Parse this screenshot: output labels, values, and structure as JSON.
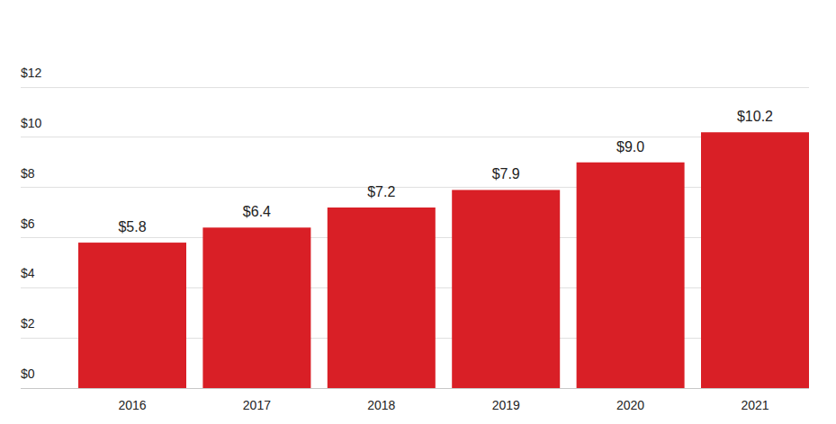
{
  "chart_data": {
    "type": "bar",
    "categories": [
      "2016",
      "2017",
      "2018",
      "2019",
      "2020",
      "2021"
    ],
    "values": [
      5.8,
      6.4,
      7.2,
      7.9,
      9.0,
      10.2
    ],
    "value_labels": [
      "$5.8",
      "$6.4",
      "$7.2",
      "$7.9",
      "$9.0",
      "$10.2"
    ],
    "color": "#d91f26",
    "ylim": [
      0,
      12
    ],
    "yticks": [
      {
        "value": 0,
        "label": "$0"
      },
      {
        "value": 2,
        "label": "$2"
      },
      {
        "value": 4,
        "label": "$4"
      },
      {
        "value": 6,
        "label": "$6"
      },
      {
        "value": 8,
        "label": "$8"
      },
      {
        "value": 10,
        "label": "$10"
      },
      {
        "value": 12,
        "label": "$12"
      }
    ],
    "grid": true,
    "data_labels": true
  }
}
